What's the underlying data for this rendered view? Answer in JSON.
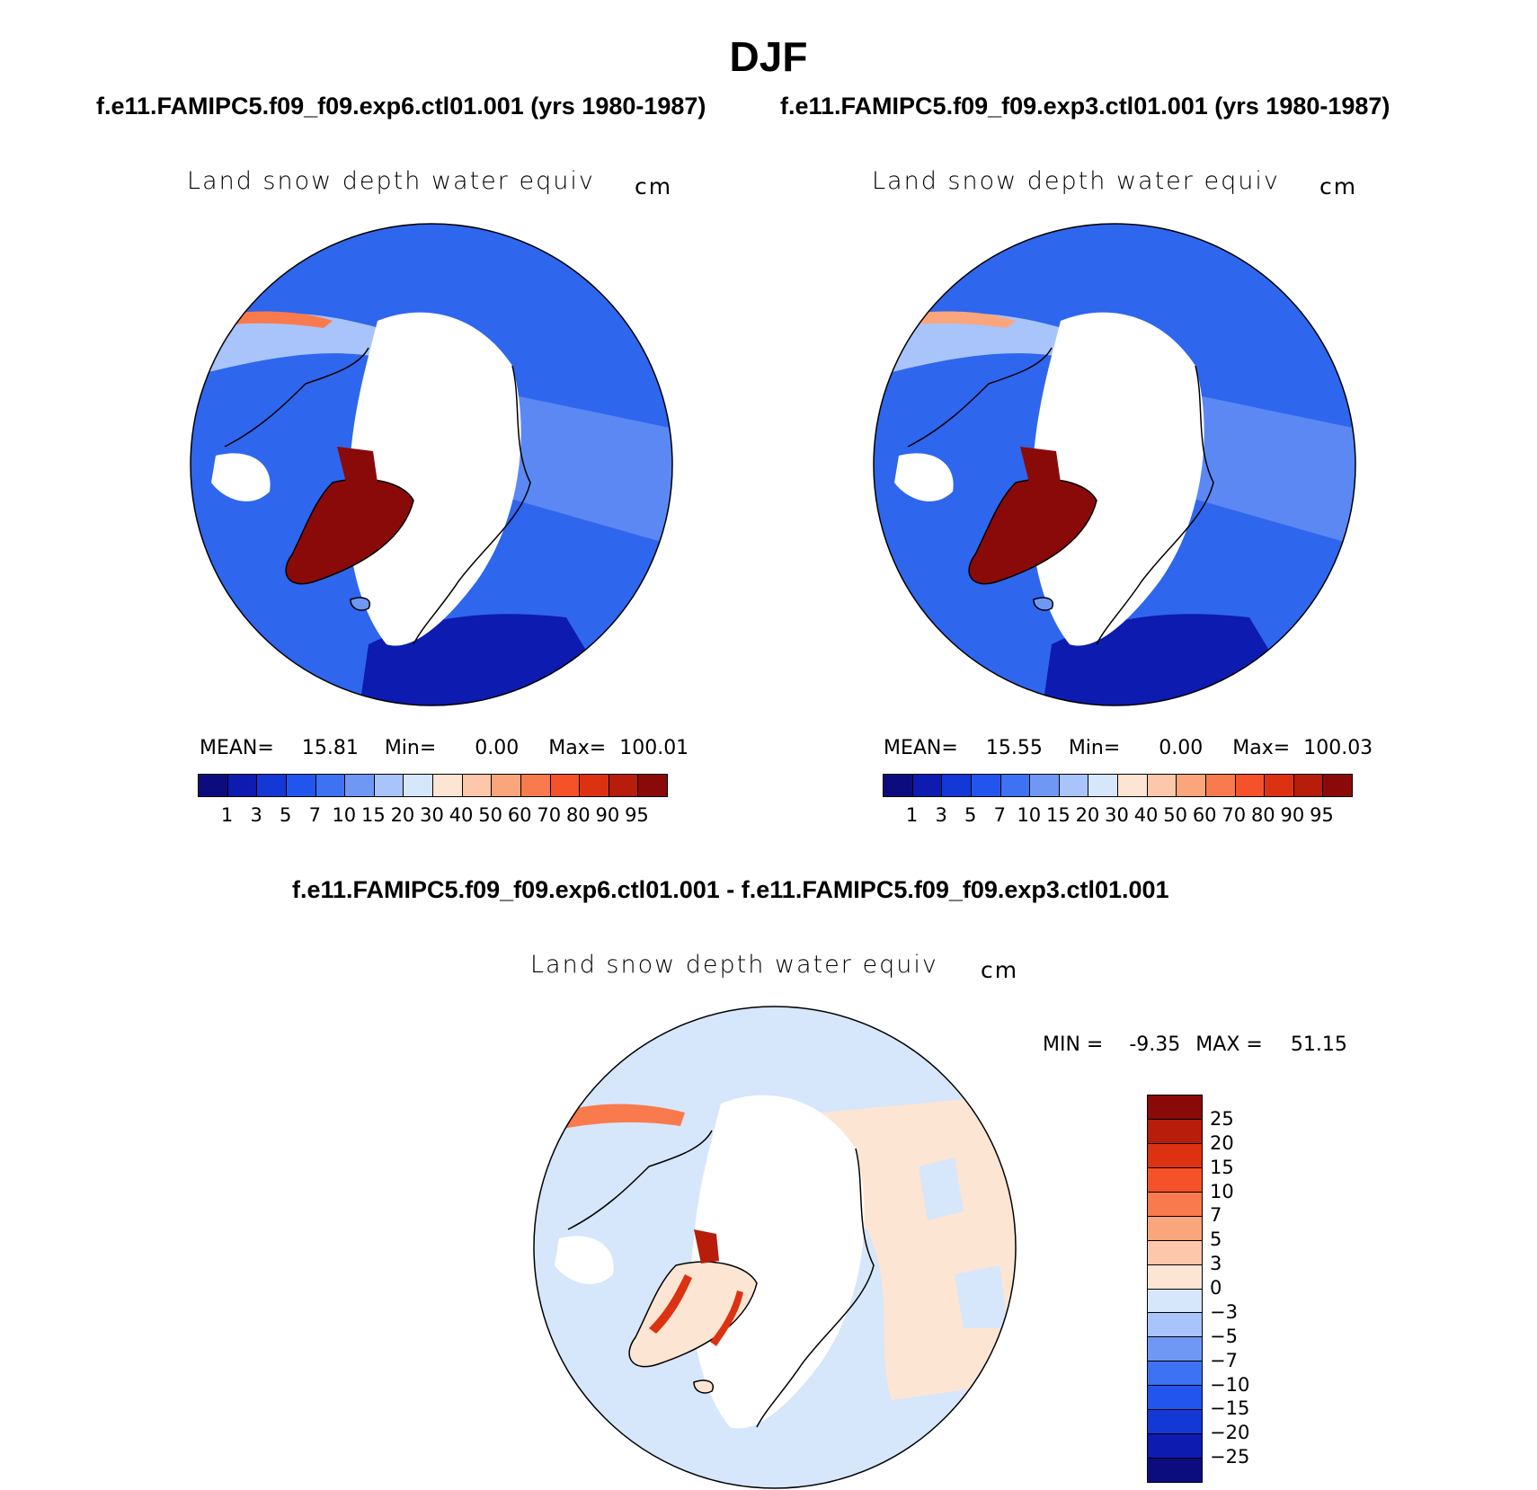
{
  "title": "DJF",
  "panels": [
    {
      "case": "f.e11.FAMIPC5.f09_f09.exp6.ctl01.001 (yrs 1980-1987)",
      "variable": "Land snow depth water equiv",
      "units": "cm",
      "stats": {
        "mean_label": "MEAN=",
        "mean": "15.81",
        "min_label": "Min=",
        "min": "0.00",
        "max_label": "Max=",
        "max": "100.01"
      }
    },
    {
      "case": "f.e11.FAMIPC5.f09_f09.exp3.ctl01.001 (yrs 1980-1987)",
      "variable": "Land snow depth water equiv",
      "units": "cm",
      "stats": {
        "mean_label": "MEAN=",
        "mean": "15.55",
        "min_label": "Min=",
        "min": "0.00",
        "max_label": "Max=",
        "max": "100.03"
      }
    }
  ],
  "difference": {
    "case": "f.e11.FAMIPC5.f09_f09.exp6.ctl01.001 - f.e11.FAMIPC5.f09_f09.exp3.ctl01.001",
    "variable": "Land snow depth water equiv",
    "units": "cm",
    "stats": {
      "min_label": "MIN =",
      "min": "-9.35",
      "max_label": "MAX =",
      "max": "51.15"
    }
  },
  "colorbar_abs": {
    "colors": [
      "#0c0c7e",
      "#0d1bb0",
      "#1438d6",
      "#2255ee",
      "#3d72f2",
      "#6f98f5",
      "#a8c4fa",
      "#d6e6fb",
      "#fde5d3",
      "#fcc7aa",
      "#fba57c",
      "#f97a4c",
      "#f5522a",
      "#dc3212",
      "#b81c0b",
      "#8a0a0a"
    ],
    "labels": [
      "1",
      "3",
      "5",
      "7",
      "10",
      "15",
      "20",
      "30",
      "40",
      "50",
      "60",
      "70",
      "80",
      "90",
      "95"
    ]
  },
  "colorbar_diff": {
    "colors": [
      "#8a0a0a",
      "#b81c0b",
      "#dc3212",
      "#f5522a",
      "#f97a4c",
      "#fba57c",
      "#fcc7aa",
      "#fde5d3",
      "#d6e6fb",
      "#a8c4fa",
      "#6f98f5",
      "#3d72f2",
      "#2255ee",
      "#1438d6",
      "#0d1bb0",
      "#0c0c7e"
    ],
    "labels": [
      "25",
      "20",
      "15",
      "10",
      "7",
      "5",
      "3",
      "0",
      "−3",
      "−5",
      "−7",
      "−10",
      "−15",
      "−20",
      "−25"
    ]
  }
}
